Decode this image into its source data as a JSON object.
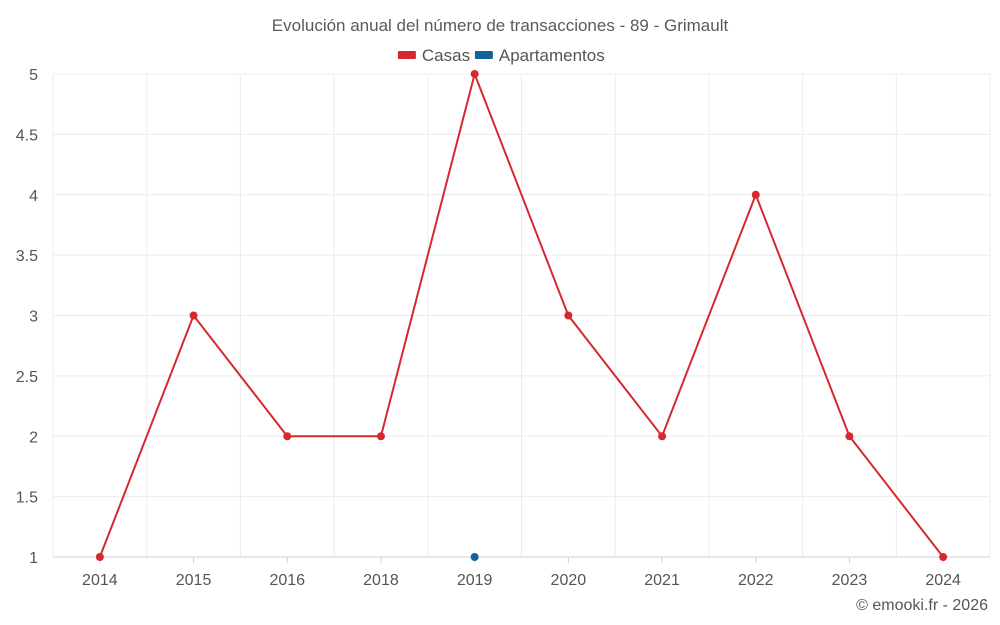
{
  "chart_data": {
    "type": "line",
    "title": "Evolución anual del número de transacciones - 89 - Grimault",
    "categories": [
      "2014",
      "2015",
      "2016",
      "2018",
      "2019",
      "2020",
      "2021",
      "2022",
      "2023",
      "2024"
    ],
    "series": [
      {
        "name": "Casas",
        "color": "#d42a2f",
        "values": [
          1,
          3,
          2,
          2,
          5,
          3,
          2,
          4,
          2,
          1
        ]
      },
      {
        "name": "Apartamentos",
        "color": "#11639a",
        "values": [
          null,
          null,
          null,
          null,
          1,
          null,
          null,
          null,
          null,
          null
        ]
      }
    ],
    "ylim": [
      1,
      5
    ],
    "yticks": [
      "1",
      "1.5",
      "2",
      "2.5",
      "3",
      "3.5",
      "4",
      "4.5",
      "5"
    ],
    "grid": true,
    "legend_position": "top-center",
    "credit": "© emooki.fr - 2026"
  }
}
